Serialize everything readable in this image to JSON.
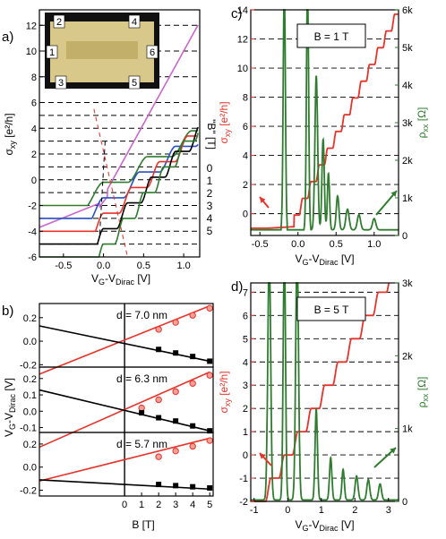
{
  "panels": {
    "a": {
      "label": "a)"
    },
    "b": {
      "label": "b)"
    },
    "c": {
      "label": "c)"
    },
    "d": {
      "label": "d)"
    }
  },
  "chart_data": [
    {
      "id": "a",
      "type": "line",
      "xlabel_main": "V",
      "xlabel_sub": "G",
      "xlabel_rest": "-V",
      "xlabel_sub2": "Dirac",
      "xlabel_unit": " [V]",
      "ylabel_main": "σ",
      "ylabel_sub": "xy",
      "ylabel_unit": " [e²/h]",
      "xlim": [
        -0.8,
        1.2
      ],
      "ylim": [
        -6,
        13.2
      ],
      "xticks": [
        "-0.5",
        "0.0",
        "0.5",
        "1.0"
      ],
      "xtick_values": [
        -0.5,
        0,
        0.5,
        1.0
      ],
      "yticks": [
        "-6",
        "-4",
        "-2",
        "0",
        "2",
        "4",
        "6",
        "8",
        "10",
        "12"
      ],
      "ytick_values": [
        -6,
        -4,
        -2,
        0,
        2,
        4,
        6,
        8,
        10,
        12
      ],
      "legend_title": "\"B\" [T]",
      "legend_entries": [
        "0",
        "1",
        "2",
        "3",
        "4",
        "5"
      ],
      "inset_contacts": [
        "1",
        "2",
        "3",
        "4",
        "5",
        "6"
      ],
      "series": [
        {
          "name": "0",
          "color": "#cc66cc",
          "offset": 0,
          "plateau_every": 0
        },
        {
          "name": "1",
          "color": "#2e7d2e",
          "offset": -1,
          "plateau_every": 0.55
        },
        {
          "name": "2",
          "color": "#2850c8",
          "offset": -2,
          "plateau_every": 0.45
        },
        {
          "name": "3",
          "color": "#e8332a",
          "offset": -3,
          "plateau_every": 0.35
        },
        {
          "name": "4",
          "color": "#000000",
          "offset": -4,
          "plateau_every": 0.3
        },
        {
          "name": "5",
          "color": "#2e7d2e",
          "offset": -5,
          "plateau_every": 0.25
        }
      ]
    },
    {
      "id": "b",
      "type": "scatter",
      "xlabel": "B [T]",
      "ylabel_main": "V",
      "ylabel_sub": "G",
      "ylabel_rest": "-V",
      "ylabel_sub2": "Dirac",
      "ylabel_unit": " [V]",
      "xlim": [
        -5,
        5.2
      ],
      "xticks": [
        "0",
        "1",
        "2",
        "3",
        "4",
        "5"
      ],
      "xtick_values": [
        0,
        1,
        2,
        3,
        4,
        5
      ],
      "subpanels": [
        {
          "label": "d = 7.0 nm",
          "ylim": [
            -0.22,
            0.32
          ],
          "yticks": [
            "0.2",
            "0.0",
            "-0.2"
          ],
          "ytick_values": [
            0.2,
            0,
            -0.2
          ],
          "red": [
            [
              2,
              0.1
            ],
            [
              3,
              0.16
            ],
            [
              4,
              0.22
            ],
            [
              5,
              0.28
            ]
          ],
          "black": [
            [
              2,
              -0.07
            ],
            [
              3,
              -0.1
            ],
            [
              4,
              -0.13
            ],
            [
              5,
              -0.17
            ]
          ],
          "red_line": [
            [
              -5,
              -0.28
            ],
            [
              5,
              0.3
            ]
          ],
          "black_line": [
            [
              -5,
              0.13
            ],
            [
              5,
              -0.17
            ]
          ]
        },
        {
          "label": "d = 6.3 nm",
          "ylim": [
            -0.13,
            0.27
          ],
          "yticks": [
            "0.2",
            "0.1",
            "0.0",
            "-0.1"
          ],
          "ytick_values": [
            0.2,
            0.1,
            0,
            -0.1
          ],
          "red": [
            [
              1,
              0.02
            ],
            [
              2,
              0.07
            ],
            [
              3,
              0.12
            ],
            [
              4,
              0.17
            ],
            [
              5,
              0.22
            ]
          ],
          "black": [
            [
              1,
              -0.01
            ],
            [
              2,
              -0.04
            ],
            [
              3,
              -0.06
            ],
            [
              4,
              -0.09
            ],
            [
              5,
              -0.12
            ]
          ],
          "red_line": [
            [
              -5,
              -0.22
            ],
            [
              5,
              0.24
            ]
          ],
          "black_line": [
            [
              -5,
              0.13
            ],
            [
              5,
              -0.12
            ]
          ]
        },
        {
          "label": "d = 5.7 nm",
          "ylim": [
            -0.25,
            0.3
          ],
          "yticks": [
            "0.2",
            "0.0",
            "-0.2"
          ],
          "ytick_values": [
            0.2,
            0,
            -0.2
          ],
          "red": [
            [
              2,
              0.09
            ],
            [
              3,
              0.14
            ],
            [
              4,
              0.18
            ],
            [
              5,
              0.23
            ]
          ],
          "black": [
            [
              2,
              -0.15
            ],
            [
              3,
              -0.16
            ],
            [
              4,
              -0.17
            ],
            [
              5,
              -0.18
            ]
          ],
          "red_line": [
            [
              -5,
              -0.12
            ],
            [
              5,
              0.25
            ]
          ],
          "black_line": [
            [
              -5,
              -0.11
            ],
            [
              5,
              -0.19
            ]
          ]
        }
      ]
    },
    {
      "id": "c",
      "type": "line",
      "box_label": "B = 1 T",
      "xlabel_main": "V",
      "xlabel_sub": "G",
      "xlabel_rest": "-V",
      "xlabel_sub2": "Dirac",
      "xlabel_unit": " [V]",
      "ylabel_main": "σ",
      "ylabel_sub": "xy",
      "ylabel_unit": " [e²/h]",
      "y2label_main": "ρ",
      "y2label_sub": "xx",
      "y2label_unit": " [Ω]",
      "xlim": [
        -0.62,
        1.32
      ],
      "ylim": [
        -1.5,
        14
      ],
      "y2lim": [
        0,
        6000
      ],
      "xticks": [
        "-0.5",
        "0.0",
        "0.5",
        "1.0"
      ],
      "xtick_values": [
        -0.5,
        0,
        0.5,
        1.0
      ],
      "yticks": [
        "0",
        "2",
        "4",
        "6",
        "8",
        "10",
        "12",
        "14"
      ],
      "ytick_values": [
        0,
        2,
        4,
        6,
        8,
        10,
        12,
        14
      ],
      "y2ticks": [
        "0",
        "1k",
        "2k",
        "3k",
        "4k",
        "5k",
        "6k"
      ],
      "y2tick_values": [
        0,
        1000,
        2000,
        3000,
        4000,
        5000,
        6000
      ],
      "sigma_color": "#e8332a",
      "rho_color": "#2e7d2e"
    },
    {
      "id": "d",
      "type": "line",
      "box_label": "B = 5 T",
      "xlabel_main": "V",
      "xlabel_sub": "G",
      "xlabel_rest": "-V",
      "xlabel_sub2": "Dirac",
      "xlabel_unit": " [V]",
      "ylabel_main": "σ",
      "ylabel_sub": "xy",
      "ylabel_unit": " [e²/h]",
      "y2label_main": "ρ",
      "y2label_sub": "xx",
      "y2label_unit": " [Ω]",
      "xlim": [
        -1.1,
        3.3
      ],
      "ylim": [
        -2,
        7.4
      ],
      "y2lim": [
        0,
        3000
      ],
      "xticks": [
        "-1",
        "0",
        "1",
        "2",
        "3"
      ],
      "xtick_values": [
        -1,
        0,
        1,
        2,
        3
      ],
      "yticks": [
        "-2",
        "-1",
        "0",
        "1",
        "2",
        "3",
        "4",
        "5",
        "6",
        "7"
      ],
      "ytick_values": [
        -2,
        -1,
        0,
        1,
        2,
        3,
        4,
        5,
        6,
        7
      ],
      "y2ticks": [
        "0",
        "1k",
        "2k",
        "3k"
      ],
      "y2tick_values": [
        0,
        1000,
        2000,
        3000
      ],
      "sigma_color": "#e8332a",
      "rho_color": "#2e7d2e"
    }
  ]
}
